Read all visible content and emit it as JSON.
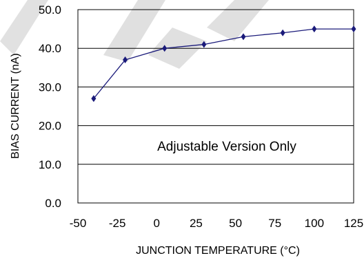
{
  "chart_data": {
    "type": "line",
    "xlabel": "JUNCTION TEMPERATURE (°C)",
    "ylabel": "BIAS CURRENT (nA)",
    "annotation": "Adjustable Version Only",
    "xlim": [
      -50,
      125
    ],
    "ylim": [
      0,
      50
    ],
    "x_ticks": [
      "-50",
      "-25",
      "0",
      "25",
      "50",
      "75",
      "100",
      "125"
    ],
    "y_ticks": [
      "0.0",
      "10.0",
      "20.0",
      "30.0",
      "40.0",
      "50.0"
    ],
    "grid": "horizontal",
    "series": [
      {
        "color": "#1a1a7a",
        "marker": "diamond",
        "x": [
          -40,
          -20,
          5,
          30,
          55,
          80,
          100,
          125
        ],
        "y": [
          27,
          37,
          40,
          41,
          43,
          44,
          45,
          45
        ]
      }
    ]
  }
}
